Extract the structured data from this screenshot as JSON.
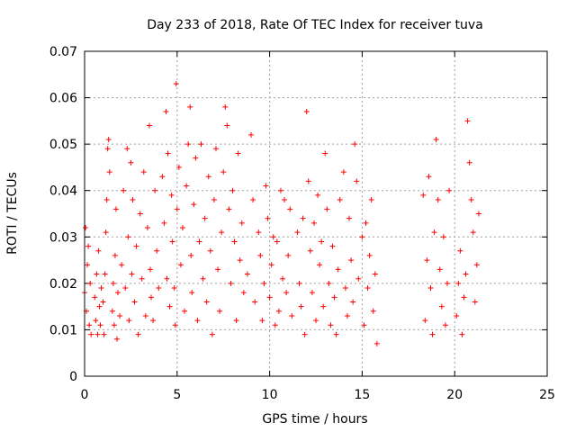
{
  "chart_data": {
    "type": "scatter",
    "title": "Day 233 of 2018, Rate Of TEC Index for receiver tuva",
    "xlabel": "GPS time / hours",
    "ylabel": "ROTI / TECUs",
    "xlim": [
      0,
      25
    ],
    "ylim": [
      0,
      0.07
    ],
    "xticks": [
      0,
      5,
      10,
      15,
      20,
      25
    ],
    "xtick_labels": [
      "0",
      "5",
      "10",
      "15",
      "20",
      "25"
    ],
    "yticks": [
      0,
      0.01,
      0.02,
      0.03,
      0.04,
      0.05,
      0.06,
      0.07
    ],
    "ytick_labels": [
      "0",
      "0.01",
      "0.02",
      "0.03",
      "0.04",
      "0.05",
      "0.06",
      "0.07"
    ],
    "grid": true,
    "marker": "+",
    "color": "#ff0000",
    "series": [
      {
        "points": [
          [
            0.0,
            0.018
          ],
          [
            0.05,
            0.032
          ],
          [
            0.1,
            0.014
          ],
          [
            0.15,
            0.024
          ],
          [
            0.2,
            0.028
          ],
          [
            0.25,
            0.011
          ],
          [
            0.3,
            0.02
          ],
          [
            0.35,
            0.009
          ],
          [
            0.55,
            0.017
          ],
          [
            0.6,
            0.012
          ],
          [
            0.65,
            0.022
          ],
          [
            0.7,
            0.009
          ],
          [
            0.75,
            0.027
          ],
          [
            0.8,
            0.015
          ],
          [
            0.85,
            0.011
          ],
          [
            0.9,
            0.019
          ],
          [
            1.0,
            0.016
          ],
          [
            1.05,
            0.009
          ],
          [
            1.1,
            0.022
          ],
          [
            1.15,
            0.031
          ],
          [
            1.2,
            0.038
          ],
          [
            1.25,
            0.049
          ],
          [
            1.3,
            0.051
          ],
          [
            1.35,
            0.044
          ],
          [
            1.5,
            0.014
          ],
          [
            1.55,
            0.02
          ],
          [
            1.6,
            0.011
          ],
          [
            1.65,
            0.026
          ],
          [
            1.7,
            0.036
          ],
          [
            1.75,
            0.008
          ],
          [
            1.8,
            0.018
          ],
          [
            1.9,
            0.013
          ],
          [
            2.0,
            0.024
          ],
          [
            2.1,
            0.04
          ],
          [
            2.2,
            0.019
          ],
          [
            2.3,
            0.049
          ],
          [
            2.35,
            0.03
          ],
          [
            2.4,
            0.012
          ],
          [
            2.5,
            0.046
          ],
          [
            2.55,
            0.022
          ],
          [
            2.6,
            0.038
          ],
          [
            2.7,
            0.016
          ],
          [
            2.8,
            0.028
          ],
          [
            2.9,
            0.009
          ],
          [
            3.0,
            0.035
          ],
          [
            3.1,
            0.021
          ],
          [
            3.2,
            0.044
          ],
          [
            3.3,
            0.013
          ],
          [
            3.4,
            0.032
          ],
          [
            3.5,
            0.054
          ],
          [
            3.55,
            0.023
          ],
          [
            3.6,
            0.017
          ],
          [
            3.7,
            0.012
          ],
          [
            3.8,
            0.04
          ],
          [
            3.9,
            0.027
          ],
          [
            4.0,
            0.019
          ],
          [
            4.2,
            0.043
          ],
          [
            4.3,
            0.033
          ],
          [
            4.4,
            0.057
          ],
          [
            4.45,
            0.021
          ],
          [
            4.5,
            0.048
          ],
          [
            4.6,
            0.015
          ],
          [
            4.7,
            0.039
          ],
          [
            4.75,
            0.029
          ],
          [
            4.85,
            0.019
          ],
          [
            4.9,
            0.011
          ],
          [
            4.95,
            0.063
          ],
          [
            5.0,
            0.036
          ],
          [
            5.1,
            0.045
          ],
          [
            5.2,
            0.024
          ],
          [
            5.3,
            0.032
          ],
          [
            5.4,
            0.014
          ],
          [
            5.5,
            0.041
          ],
          [
            5.6,
            0.05
          ],
          [
            5.7,
            0.058
          ],
          [
            5.75,
            0.026
          ],
          [
            5.8,
            0.018
          ],
          [
            5.9,
            0.037
          ],
          [
            6.0,
            0.047
          ],
          [
            6.1,
            0.012
          ],
          [
            6.2,
            0.029
          ],
          [
            6.3,
            0.05
          ],
          [
            6.4,
            0.021
          ],
          [
            6.5,
            0.034
          ],
          [
            6.6,
            0.016
          ],
          [
            6.7,
            0.043
          ],
          [
            6.8,
            0.027
          ],
          [
            6.9,
            0.009
          ],
          [
            7.0,
            0.038
          ],
          [
            7.1,
            0.049
          ],
          [
            7.2,
            0.023
          ],
          [
            7.3,
            0.014
          ],
          [
            7.4,
            0.031
          ],
          [
            7.5,
            0.044
          ],
          [
            7.6,
            0.058
          ],
          [
            7.7,
            0.054
          ],
          [
            7.8,
            0.036
          ],
          [
            7.9,
            0.02
          ],
          [
            8.0,
            0.04
          ],
          [
            8.1,
            0.029
          ],
          [
            8.2,
            0.012
          ],
          [
            8.3,
            0.048
          ],
          [
            8.4,
            0.025
          ],
          [
            8.5,
            0.033
          ],
          [
            8.6,
            0.018
          ],
          [
            8.8,
            0.022
          ],
          [
            9.0,
            0.052
          ],
          [
            9.1,
            0.038
          ],
          [
            9.2,
            0.016
          ],
          [
            9.4,
            0.031
          ],
          [
            9.5,
            0.026
          ],
          [
            9.6,
            0.012
          ],
          [
            9.7,
            0.02
          ],
          [
            9.8,
            0.041
          ],
          [
            9.9,
            0.034
          ],
          [
            10.0,
            0.017
          ],
          [
            10.1,
            0.024
          ],
          [
            10.2,
            0.03
          ],
          [
            10.3,
            0.011
          ],
          [
            10.4,
            0.029
          ],
          [
            10.5,
            0.014
          ],
          [
            10.6,
            0.04
          ],
          [
            10.7,
            0.021
          ],
          [
            10.8,
            0.038
          ],
          [
            10.9,
            0.018
          ],
          [
            11.0,
            0.026
          ],
          [
            11.1,
            0.036
          ],
          [
            11.2,
            0.013
          ],
          [
            11.5,
            0.031
          ],
          [
            11.6,
            0.02
          ],
          [
            11.7,
            0.015
          ],
          [
            11.8,
            0.034
          ],
          [
            11.9,
            0.009
          ],
          [
            12.0,
            0.057
          ],
          [
            12.1,
            0.042
          ],
          [
            12.2,
            0.027
          ],
          [
            12.3,
            0.018
          ],
          [
            12.4,
            0.033
          ],
          [
            12.5,
            0.012
          ],
          [
            12.6,
            0.039
          ],
          [
            12.7,
            0.024
          ],
          [
            12.8,
            0.029
          ],
          [
            12.9,
            0.015
          ],
          [
            13.0,
            0.048
          ],
          [
            13.1,
            0.036
          ],
          [
            13.2,
            0.02
          ],
          [
            13.3,
            0.011
          ],
          [
            13.4,
            0.028
          ],
          [
            13.5,
            0.017
          ],
          [
            13.6,
            0.009
          ],
          [
            13.7,
            0.023
          ],
          [
            13.8,
            0.038
          ],
          [
            14.0,
            0.044
          ],
          [
            14.1,
            0.019
          ],
          [
            14.2,
            0.013
          ],
          [
            14.3,
            0.034
          ],
          [
            14.4,
            0.025
          ],
          [
            14.5,
            0.016
          ],
          [
            14.6,
            0.05
          ],
          [
            14.7,
            0.042
          ],
          [
            14.8,
            0.021
          ],
          [
            15.0,
            0.03
          ],
          [
            15.1,
            0.011
          ],
          [
            15.2,
            0.033
          ],
          [
            15.3,
            0.019
          ],
          [
            15.4,
            0.026
          ],
          [
            15.5,
            0.038
          ],
          [
            15.6,
            0.014
          ],
          [
            15.7,
            0.022
          ],
          [
            15.8,
            0.007
          ],
          [
            18.3,
            0.039
          ],
          [
            18.4,
            0.012
          ],
          [
            18.5,
            0.025
          ],
          [
            18.6,
            0.043
          ],
          [
            18.7,
            0.019
          ],
          [
            18.8,
            0.009
          ],
          [
            18.9,
            0.031
          ],
          [
            19.0,
            0.051
          ],
          [
            19.1,
            0.038
          ],
          [
            19.2,
            0.023
          ],
          [
            19.3,
            0.015
          ],
          [
            19.4,
            0.03
          ],
          [
            19.5,
            0.011
          ],
          [
            19.6,
            0.02
          ],
          [
            19.7,
            0.04
          ],
          [
            20.1,
            0.013
          ],
          [
            20.2,
            0.02
          ],
          [
            20.3,
            0.027
          ],
          [
            20.4,
            0.009
          ],
          [
            20.5,
            0.017
          ],
          [
            20.6,
            0.022
          ],
          [
            20.7,
            0.055
          ],
          [
            20.8,
            0.046
          ],
          [
            20.9,
            0.038
          ],
          [
            21.0,
            0.031
          ],
          [
            21.1,
            0.016
          ],
          [
            21.2,
            0.024
          ],
          [
            21.3,
            0.035
          ]
        ]
      }
    ]
  }
}
